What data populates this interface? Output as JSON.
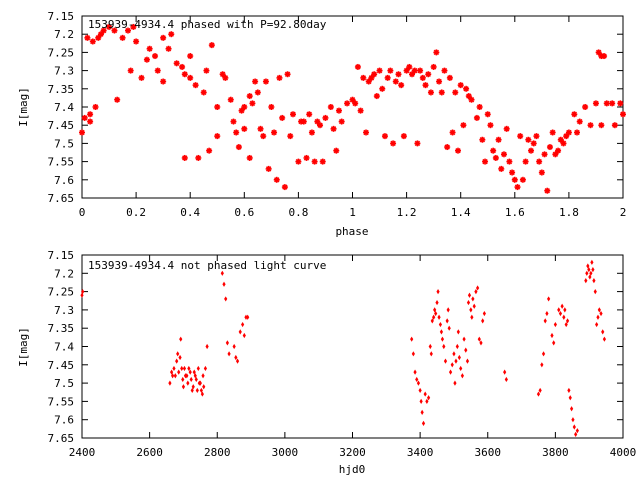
{
  "chart_data": [
    {
      "type": "scatter",
      "title": "153939-4934.4 phased with P=92.80day",
      "xlabel": "phase",
      "ylabel": "I[mag]",
      "xlim": [
        0,
        2
      ],
      "ylim": [
        7.15,
        7.65
      ],
      "y_inverted": true,
      "xticks": [
        "0",
        "0.2",
        "0.4",
        "0.6",
        "0.8",
        "1",
        "1.2",
        "1.4",
        "1.6",
        "1.8",
        "2"
      ],
      "yticks": [
        "7.15",
        "7.2",
        "7.25",
        "7.3",
        "7.35",
        "7.4",
        "7.45",
        "7.5",
        "7.55",
        "7.6",
        "7.65"
      ],
      "marker": "star",
      "color": "#ff0000",
      "points": [
        [
          0.0,
          7.47
        ],
        [
          0.01,
          7.43
        ],
        [
          0.02,
          7.21
        ],
        [
          0.03,
          7.44
        ],
        [
          0.03,
          7.42
        ],
        [
          0.04,
          7.22
        ],
        [
          0.05,
          7.4
        ],
        [
          0.06,
          7.21
        ],
        [
          0.07,
          7.2
        ],
        [
          0.08,
          7.19
        ],
        [
          0.1,
          7.18
        ],
        [
          0.12,
          7.19
        ],
        [
          0.13,
          7.38
        ],
        [
          0.15,
          7.21
        ],
        [
          0.17,
          7.19
        ],
        [
          0.18,
          7.3
        ],
        [
          0.19,
          7.18
        ],
        [
          0.2,
          7.22
        ],
        [
          0.22,
          7.32
        ],
        [
          0.24,
          7.27
        ],
        [
          0.25,
          7.24
        ],
        [
          0.27,
          7.26
        ],
        [
          0.28,
          7.3
        ],
        [
          0.3,
          7.33
        ],
        [
          0.3,
          7.21
        ],
        [
          0.32,
          7.24
        ],
        [
          0.33,
          7.2
        ],
        [
          0.35,
          7.28
        ],
        [
          0.37,
          7.29
        ],
        [
          0.38,
          7.54
        ],
        [
          0.38,
          7.31
        ],
        [
          0.4,
          7.26
        ],
        [
          0.4,
          7.32
        ],
        [
          0.42,
          7.34
        ],
        [
          0.43,
          7.54
        ],
        [
          0.45,
          7.36
        ],
        [
          0.46,
          7.3
        ],
        [
          0.47,
          7.52
        ],
        [
          0.48,
          7.23
        ],
        [
          0.5,
          7.4
        ],
        [
          0.5,
          7.48
        ],
        [
          0.52,
          7.31
        ],
        [
          0.53,
          7.32
        ],
        [
          0.55,
          7.38
        ],
        [
          0.56,
          7.44
        ],
        [
          0.57,
          7.47
        ],
        [
          0.58,
          7.51
        ],
        [
          0.59,
          7.41
        ],
        [
          0.6,
          7.4
        ],
        [
          0.6,
          7.46
        ],
        [
          0.62,
          7.54
        ],
        [
          0.62,
          7.37
        ],
        [
          0.63,
          7.39
        ],
        [
          0.64,
          7.33
        ],
        [
          0.65,
          7.36
        ],
        [
          0.66,
          7.46
        ],
        [
          0.67,
          7.48
        ],
        [
          0.68,
          7.33
        ],
        [
          0.69,
          7.57
        ],
        [
          0.7,
          7.4
        ],
        [
          0.71,
          7.47
        ],
        [
          0.72,
          7.6
        ],
        [
          0.73,
          7.32
        ],
        [
          0.74,
          7.43
        ],
        [
          0.75,
          7.62
        ],
        [
          0.76,
          7.31
        ],
        [
          0.77,
          7.48
        ],
        [
          0.78,
          7.42
        ],
        [
          0.8,
          7.55
        ],
        [
          0.81,
          7.44
        ],
        [
          0.82,
          7.44
        ],
        [
          0.83,
          7.54
        ],
        [
          0.84,
          7.42
        ],
        [
          0.85,
          7.47
        ],
        [
          0.86,
          7.55
        ],
        [
          0.87,
          7.44
        ],
        [
          0.88,
          7.45
        ],
        [
          0.89,
          7.55
        ],
        [
          0.9,
          7.43
        ],
        [
          0.92,
          7.4
        ],
        [
          0.93,
          7.46
        ],
        [
          0.94,
          7.52
        ],
        [
          0.95,
          7.41
        ],
        [
          0.96,
          7.44
        ],
        [
          0.98,
          7.39
        ],
        [
          1.0,
          7.38
        ],
        [
          1.01,
          7.39
        ],
        [
          1.02,
          7.29
        ],
        [
          1.03,
          7.41
        ],
        [
          1.04,
          7.32
        ],
        [
          1.05,
          7.47
        ],
        [
          1.06,
          7.33
        ],
        [
          1.07,
          7.32
        ],
        [
          1.08,
          7.31
        ],
        [
          1.09,
          7.37
        ],
        [
          1.1,
          7.3
        ],
        [
          1.11,
          7.35
        ],
        [
          1.12,
          7.48
        ],
        [
          1.13,
          7.32
        ],
        [
          1.14,
          7.3
        ],
        [
          1.15,
          7.5
        ],
        [
          1.16,
          7.33
        ],
        [
          1.17,
          7.31
        ],
        [
          1.18,
          7.34
        ],
        [
          1.19,
          7.48
        ],
        [
          1.2,
          7.3
        ],
        [
          1.21,
          7.29
        ],
        [
          1.22,
          7.31
        ],
        [
          1.23,
          7.3
        ],
        [
          1.24,
          7.5
        ],
        [
          1.25,
          7.3
        ],
        [
          1.26,
          7.32
        ],
        [
          1.27,
          7.34
        ],
        [
          1.28,
          7.31
        ],
        [
          1.29,
          7.36
        ],
        [
          1.3,
          7.29
        ],
        [
          1.31,
          7.25
        ],
        [
          1.32,
          7.33
        ],
        [
          1.33,
          7.36
        ],
        [
          1.34,
          7.3
        ],
        [
          1.35,
          7.51
        ],
        [
          1.36,
          7.32
        ],
        [
          1.37,
          7.47
        ],
        [
          1.38,
          7.36
        ],
        [
          1.39,
          7.52
        ],
        [
          1.4,
          7.34
        ],
        [
          1.41,
          7.45
        ],
        [
          1.42,
          7.35
        ],
        [
          1.43,
          7.37
        ],
        [
          1.44,
          7.38
        ],
        [
          1.46,
          7.43
        ],
        [
          1.47,
          7.4
        ],
        [
          1.48,
          7.49
        ],
        [
          1.49,
          7.55
        ],
        [
          1.5,
          7.42
        ],
        [
          1.51,
          7.45
        ],
        [
          1.52,
          7.52
        ],
        [
          1.53,
          7.54
        ],
        [
          1.54,
          7.49
        ],
        [
          1.55,
          7.57
        ],
        [
          1.56,
          7.53
        ],
        [
          1.57,
          7.46
        ],
        [
          1.58,
          7.55
        ],
        [
          1.59,
          7.58
        ],
        [
          1.6,
          7.6
        ],
        [
          1.61,
          7.62
        ],
        [
          1.62,
          7.48
        ],
        [
          1.63,
          7.6
        ],
        [
          1.64,
          7.55
        ],
        [
          1.65,
          7.49
        ],
        [
          1.66,
          7.52
        ],
        [
          1.67,
          7.5
        ],
        [
          1.68,
          7.48
        ],
        [
          1.69,
          7.55
        ],
        [
          1.7,
          7.58
        ],
        [
          1.71,
          7.53
        ],
        [
          1.72,
          7.63
        ],
        [
          1.73,
          7.51
        ],
        [
          1.74,
          7.47
        ],
        [
          1.75,
          7.53
        ],
        [
          1.76,
          7.52
        ],
        [
          1.77,
          7.49
        ],
        [
          1.78,
          7.5
        ],
        [
          1.79,
          7.48
        ],
        [
          1.8,
          7.47
        ],
        [
          1.82,
          7.42
        ],
        [
          1.83,
          7.47
        ],
        [
          1.84,
          7.44
        ],
        [
          1.86,
          7.4
        ],
        [
          1.88,
          7.45
        ],
        [
          1.9,
          7.39
        ],
        [
          1.91,
          7.25
        ],
        [
          1.92,
          7.45
        ],
        [
          1.92,
          7.26
        ],
        [
          1.93,
          7.26
        ],
        [
          1.94,
          7.39
        ],
        [
          1.96,
          7.39
        ],
        [
          1.97,
          7.45
        ],
        [
          1.99,
          7.39
        ],
        [
          2.0,
          7.42
        ]
      ]
    },
    {
      "type": "scatter",
      "title": "153939-4934.4 not phased light curve",
      "xlabel": "hjd0",
      "ylabel": "I[mag]",
      "xlim": [
        2400,
        4000
      ],
      "ylim": [
        7.15,
        7.65
      ],
      "y_inverted": true,
      "xticks": [
        "2400",
        "2600",
        "2800",
        "3000",
        "3200",
        "3400",
        "3600",
        "3800",
        "4000"
      ],
      "yticks": [
        "7.15",
        "7.2",
        "7.25",
        "7.3",
        "7.35",
        "7.4",
        "7.45",
        "7.5",
        "7.55",
        "7.6",
        "7.65"
      ],
      "marker": "diamond",
      "color": "#ff0000",
      "points": [
        [
          2400,
          7.26
        ],
        [
          2402,
          7.25
        ],
        [
          2660,
          7.5
        ],
        [
          2665,
          7.47
        ],
        [
          2668,
          7.48
        ],
        [
          2672,
          7.46
        ],
        [
          2676,
          7.48
        ],
        [
          2680,
          7.44
        ],
        [
          2683,
          7.42
        ],
        [
          2686,
          7.47
        ],
        [
          2690,
          7.43
        ],
        [
          2692,
          7.38
        ],
        [
          2695,
          7.46
        ],
        [
          2698,
          7.49
        ],
        [
          2700,
          7.51
        ],
        [
          2703,
          7.46
        ],
        [
          2706,
          7.48
        ],
        [
          2710,
          7.48
        ],
        [
          2713,
          7.5
        ],
        [
          2716,
          7.46
        ],
        [
          2720,
          7.47
        ],
        [
          2723,
          7.49
        ],
        [
          2726,
          7.52
        ],
        [
          2729,
          7.51
        ],
        [
          2732,
          7.47
        ],
        [
          2735,
          7.48
        ],
        [
          2738,
          7.49
        ],
        [
          2741,
          7.52
        ],
        [
          2744,
          7.46
        ],
        [
          2747,
          7.5
        ],
        [
          2750,
          7.5
        ],
        [
          2753,
          7.52
        ],
        [
          2756,
          7.53
        ],
        [
          2758,
          7.48
        ],
        [
          2760,
          7.51
        ],
        [
          2765,
          7.46
        ],
        [
          2770,
          7.4
        ],
        [
          2815,
          7.2
        ],
        [
          2820,
          7.23
        ],
        [
          2825,
          7.27
        ],
        [
          2830,
          7.39
        ],
        [
          2835,
          7.42
        ],
        [
          2850,
          7.4
        ],
        [
          2855,
          7.43
        ],
        [
          2860,
          7.44
        ],
        [
          2868,
          7.36
        ],
        [
          2875,
          7.34
        ],
        [
          2880,
          7.37
        ],
        [
          2885,
          7.32
        ],
        [
          2890,
          7.32
        ],
        [
          3375,
          7.38
        ],
        [
          3380,
          7.42
        ],
        [
          3385,
          7.47
        ],
        [
          3390,
          7.49
        ],
        [
          3395,
          7.5
        ],
        [
          3400,
          7.52
        ],
        [
          3403,
          7.55
        ],
        [
          3406,
          7.58
        ],
        [
          3410,
          7.61
        ],
        [
          3415,
          7.53
        ],
        [
          3420,
          7.55
        ],
        [
          3425,
          7.54
        ],
        [
          3430,
          7.4
        ],
        [
          3433,
          7.42
        ],
        [
          3436,
          7.33
        ],
        [
          3440,
          7.32
        ],
        [
          3443,
          7.3
        ],
        [
          3446,
          7.31
        ],
        [
          3450,
          7.28
        ],
        [
          3453,
          7.25
        ],
        [
          3456,
          7.32
        ],
        [
          3460,
          7.34
        ],
        [
          3463,
          7.36
        ],
        [
          3466,
          7.38
        ],
        [
          3470,
          7.4
        ],
        [
          3475,
          7.44
        ],
        [
          3480,
          7.33
        ],
        [
          3483,
          7.3
        ],
        [
          3486,
          7.35
        ],
        [
          3490,
          7.47
        ],
        [
          3495,
          7.45
        ],
        [
          3500,
          7.42
        ],
        [
          3503,
          7.5
        ],
        [
          3506,
          7.44
        ],
        [
          3510,
          7.4
        ],
        [
          3513,
          7.36
        ],
        [
          3516,
          7.43
        ],
        [
          3520,
          7.46
        ],
        [
          3525,
          7.48
        ],
        [
          3530,
          7.38
        ],
        [
          3535,
          7.41
        ],
        [
          3540,
          7.44
        ],
        [
          3543,
          7.28
        ],
        [
          3546,
          7.26
        ],
        [
          3550,
          7.3
        ],
        [
          3553,
          7.32
        ],
        [
          3556,
          7.27
        ],
        [
          3560,
          7.29
        ],
        [
          3565,
          7.25
        ],
        [
          3570,
          7.24
        ],
        [
          3575,
          7.38
        ],
        [
          3580,
          7.39
        ],
        [
          3585,
          7.33
        ],
        [
          3590,
          7.31
        ],
        [
          3650,
          7.47
        ],
        [
          3655,
          7.49
        ],
        [
          3750,
          7.53
        ],
        [
          3755,
          7.52
        ],
        [
          3760,
          7.45
        ],
        [
          3765,
          7.42
        ],
        [
          3770,
          7.33
        ],
        [
          3775,
          7.31
        ],
        [
          3780,
          7.27
        ],
        [
          3790,
          7.37
        ],
        [
          3795,
          7.39
        ],
        [
          3800,
          7.34
        ],
        [
          3810,
          7.3
        ],
        [
          3815,
          7.31
        ],
        [
          3820,
          7.29
        ],
        [
          3825,
          7.32
        ],
        [
          3828,
          7.3
        ],
        [
          3832,
          7.34
        ],
        [
          3836,
          7.33
        ],
        [
          3840,
          7.52
        ],
        [
          3844,
          7.54
        ],
        [
          3848,
          7.57
        ],
        [
          3852,
          7.6
        ],
        [
          3856,
          7.62
        ],
        [
          3860,
          7.64
        ],
        [
          3865,
          7.63
        ],
        [
          3890,
          7.22
        ],
        [
          3893,
          7.2
        ],
        [
          3896,
          7.18
        ],
        [
          3899,
          7.19
        ],
        [
          3902,
          7.21
        ],
        [
          3905,
          7.2
        ],
        [
          3908,
          7.17
        ],
        [
          3911,
          7.19
        ],
        [
          3914,
          7.22
        ],
        [
          3918,
          7.25
        ],
        [
          3922,
          7.34
        ],
        [
          3926,
          7.32
        ],
        [
          3930,
          7.3
        ],
        [
          3935,
          7.31
        ],
        [
          3940,
          7.36
        ],
        [
          3945,
          7.38
        ]
      ]
    }
  ]
}
